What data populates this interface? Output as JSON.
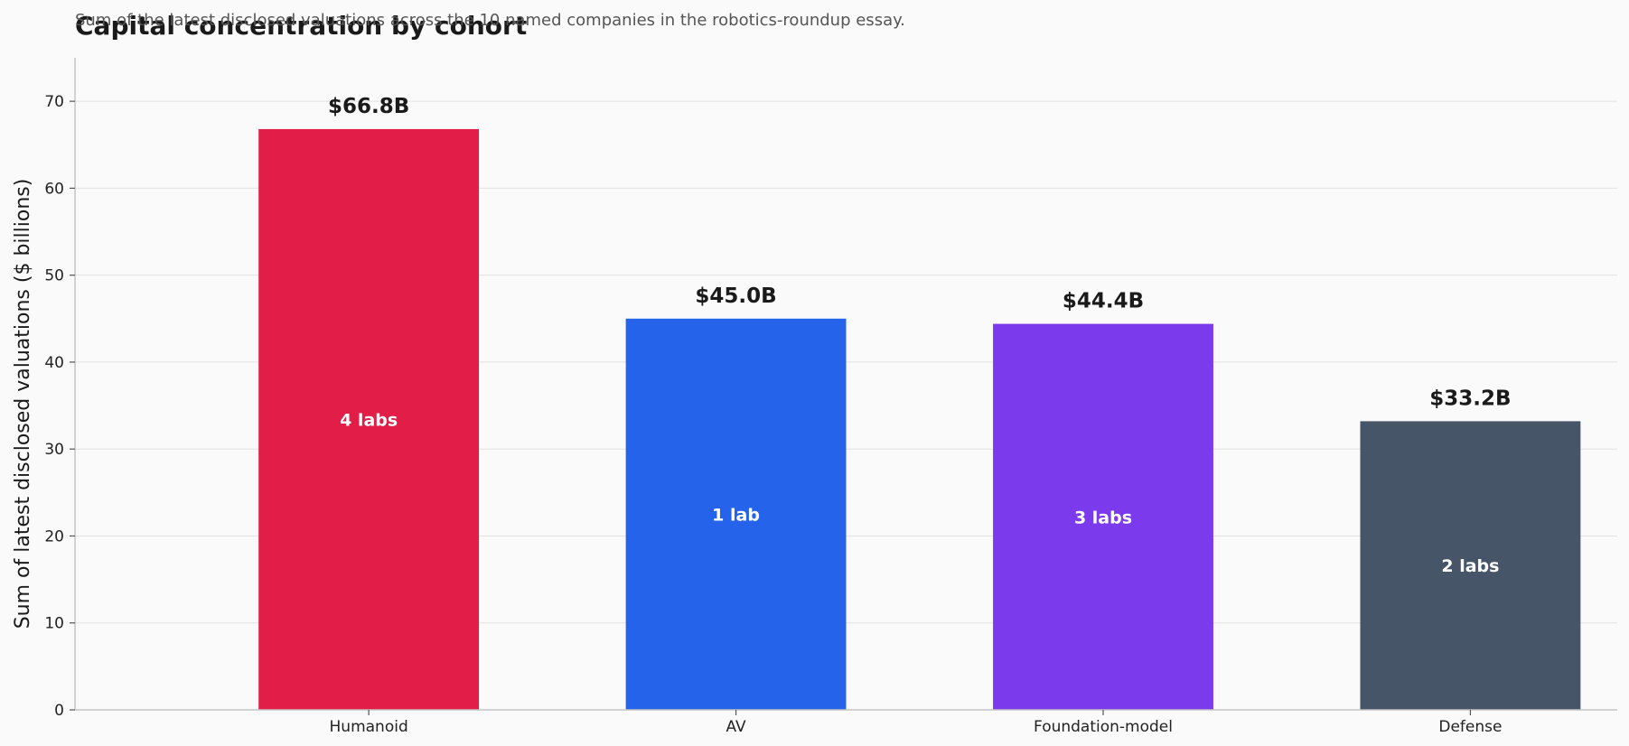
{
  "chart_data": {
    "type": "bar",
    "title": "Capital concentration by cohort",
    "subtitle": "Sum of the latest disclosed valuations across the 10 named companies in the robotics-roundup essay.",
    "xlabel": "",
    "ylabel": "Sum of latest disclosed valuations ($ billions)",
    "ylim": [
      0,
      75
    ],
    "yticks": [
      0,
      10,
      20,
      30,
      40,
      50,
      60,
      70
    ],
    "grid": "y",
    "categories": [
      "Humanoid",
      "AV",
      "Foundation-model",
      "Defense"
    ],
    "values": [
      66.8,
      45.0,
      44.4,
      33.2
    ],
    "value_labels": [
      "$66.8B",
      "$45.0B",
      "$44.4B",
      "$33.2B"
    ],
    "inner_labels": [
      "4 labs",
      "1 lab",
      "3 labs",
      "2 labs"
    ],
    "colors": [
      "#e11d48",
      "#2563eb",
      "#7c3aed",
      "#475569"
    ]
  }
}
